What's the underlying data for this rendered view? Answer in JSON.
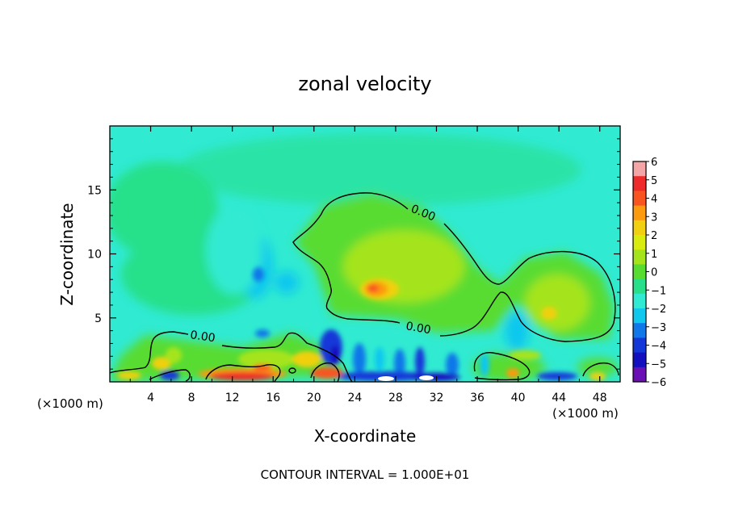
{
  "chart_data": {
    "type": "heatmap",
    "title": "zonal velocity",
    "xlabel": "X-coordinate",
    "ylabel": "Z-coordinate",
    "x_unit_label": "(×1000 m)",
    "x_unit_label_right": "(×1000 m)",
    "footer": "CONTOUR INTERVAL = 1.000E+01",
    "xlim": [
      0,
      50
    ],
    "ylim": [
      0,
      20
    ],
    "x_ticks": [
      4,
      8,
      12,
      16,
      20,
      24,
      28,
      32,
      36,
      40,
      44,
      48
    ],
    "x_tick_labels": [
      "4",
      "8",
      "12",
      "16",
      "20",
      "24",
      "28",
      "32",
      "36",
      "40",
      "44",
      "48"
    ],
    "y_ticks": [
      5,
      10,
      15
    ],
    "y_tick_labels": [
      "5",
      "10",
      "15"
    ],
    "colorbar": {
      "min": -6,
      "max": 6,
      "ticks": [
        "6",
        "5",
        "4",
        "3",
        "2",
        "1",
        "0",
        "−1",
        "−2",
        "−3",
        "−4",
        "−5",
        "−6"
      ],
      "colors": [
        "#f4a5a5",
        "#ee2a2a",
        "#f85520",
        "#fc9a10",
        "#f0d010",
        "#d8ec10",
        "#a5e41a",
        "#58dc30",
        "#28e08a",
        "#30ead2",
        "#10c8ee",
        "#1078e8",
        "#1438d8",
        "#1410c0",
        "#6a0fb4"
      ]
    },
    "contour_labels": [
      {
        "text": "0.00",
        "x": 29.5,
        "y": 13.2
      },
      {
        "text": "0.00",
        "x": 30.5,
        "y": 4.0
      },
      {
        "text": "0.00",
        "x": 9.5,
        "y": 3.4
      }
    ],
    "features": [
      {
        "name": "max",
        "x": 26,
        "y": 7,
        "value": 4
      },
      {
        "name": "max",
        "x": 43,
        "y": 5,
        "value": 3
      },
      {
        "name": "min",
        "x": 14,
        "y": 8,
        "value": -3
      },
      {
        "name": "surface-max",
        "x": 12,
        "y": 0.3,
        "value": 5
      },
      {
        "name": "surface-min",
        "x": 29,
        "y": 0.3,
        "value": -5
      }
    ]
  }
}
